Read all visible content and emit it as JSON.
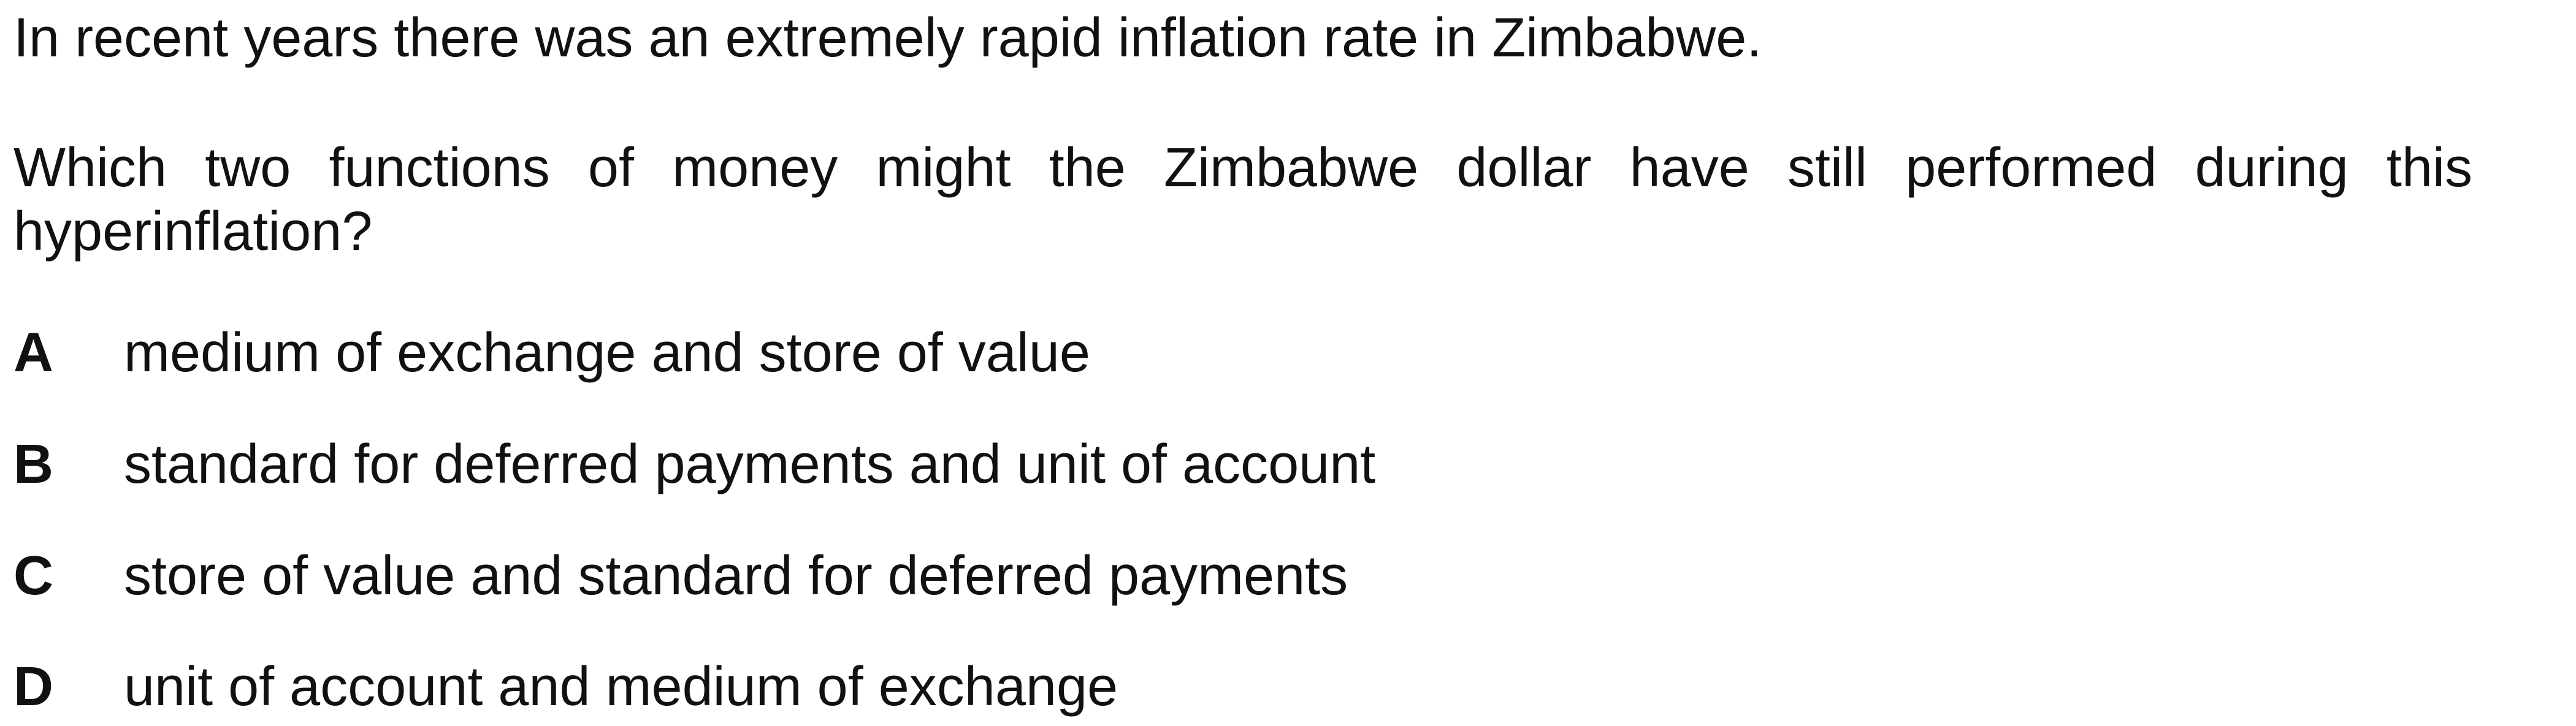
{
  "question": {
    "intro": "In recent years there was an extremely rapid inflation rate in Zimbabwe.",
    "prompt": "Which two functions of money might the Zimbabwe dollar have still performed during this hyperinflation?"
  },
  "options": [
    {
      "letter": "A",
      "text": "medium of exchange and store of value"
    },
    {
      "letter": "B",
      "text": "standard for deferred payments and unit of account"
    },
    {
      "letter": "C",
      "text": "store of value and standard for deferred payments"
    },
    {
      "letter": "D",
      "text": "unit of account and medium of exchange"
    }
  ]
}
